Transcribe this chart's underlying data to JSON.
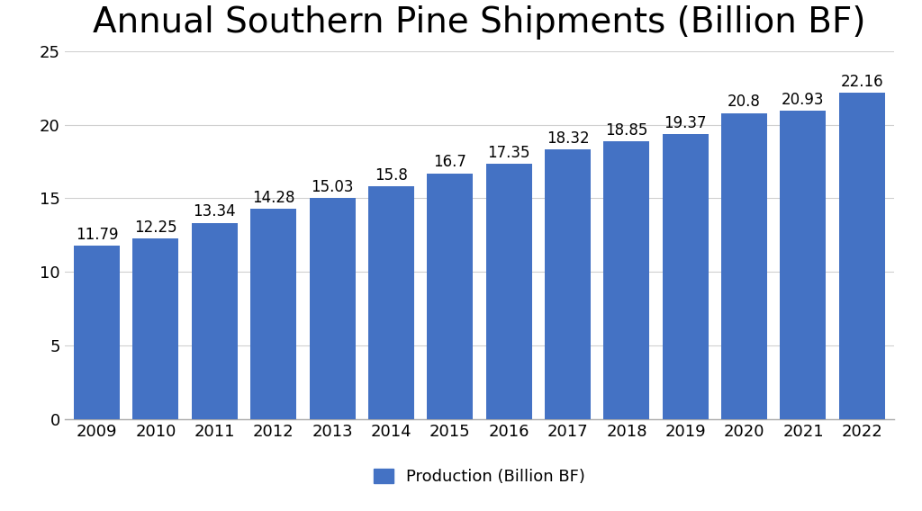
{
  "title": "Annual Southern Pine Shipments (Billion BF)",
  "years": [
    2009,
    2010,
    2011,
    2012,
    2013,
    2014,
    2015,
    2016,
    2017,
    2018,
    2019,
    2020,
    2021,
    2022
  ],
  "values": [
    11.79,
    12.25,
    13.34,
    14.28,
    15.03,
    15.8,
    16.7,
    17.35,
    18.32,
    18.85,
    19.37,
    20.8,
    20.93,
    22.16
  ],
  "bar_color": "#4472C4",
  "background_color": "#FFFFFF",
  "ylim": [
    0,
    25
  ],
  "yticks": [
    0,
    5,
    10,
    15,
    20,
    25
  ],
  "legend_label": "Production (Billion BF)",
  "title_fontsize": 28,
  "tick_fontsize": 13,
  "annotation_fontsize": 12,
  "legend_fontsize": 13,
  "bar_width": 0.78,
  "grid_color": "#D0D0D0",
  "spine_color": "#AAAAAA"
}
